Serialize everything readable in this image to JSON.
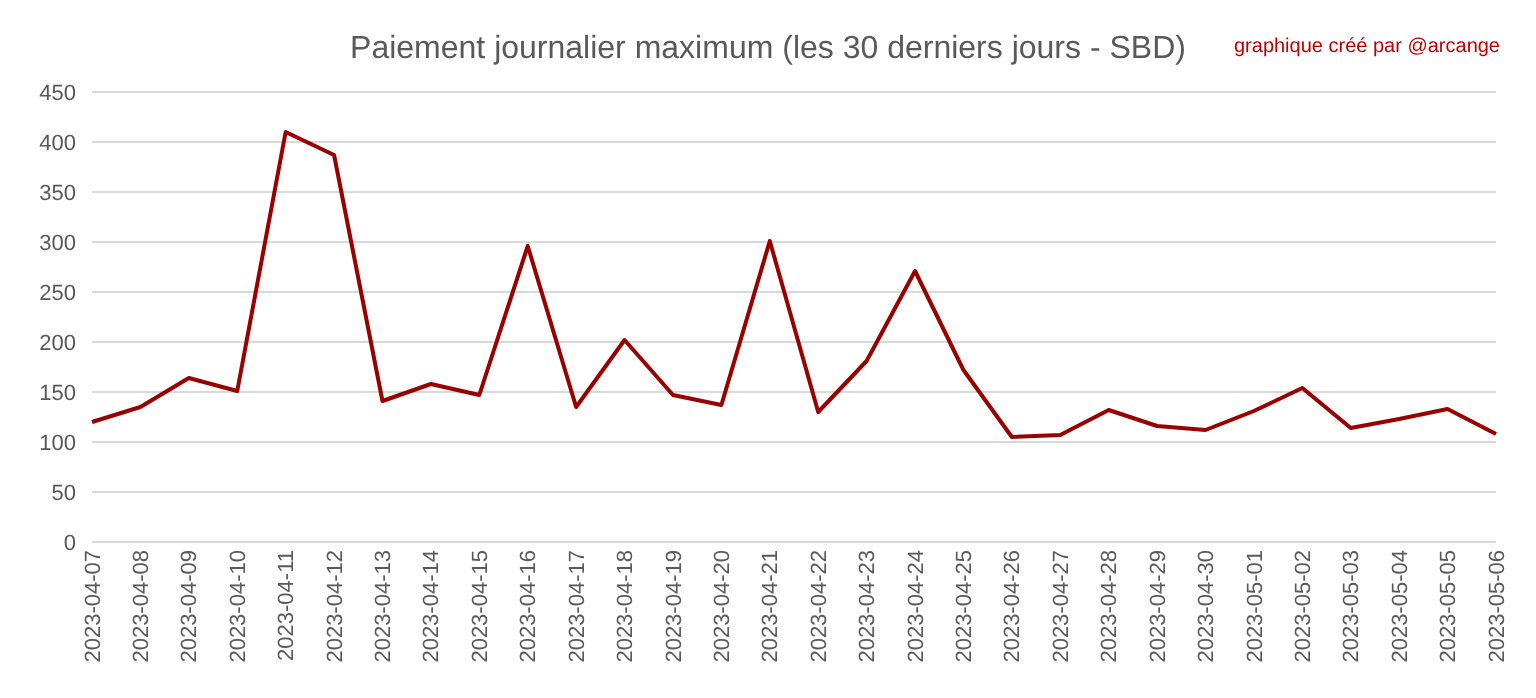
{
  "chart_data": {
    "type": "line",
    "title": "Paiement journalier maximum (les 30 derniers jours - SBD)",
    "annotations": [
      "graphique créé par @arcange"
    ],
    "categories": [
      "2023-04-07",
      "2023-04-08",
      "2023-04-09",
      "2023-04-10",
      "2023-04-11",
      "2023-04-12",
      "2023-04-13",
      "2023-04-14",
      "2023-04-15",
      "2023-04-16",
      "2023-04-17",
      "2023-04-18",
      "2023-04-19",
      "2023-04-20",
      "2023-04-21",
      "2023-04-22",
      "2023-04-23",
      "2023-04-24",
      "2023-04-25",
      "2023-04-26",
      "2023-04-27",
      "2023-04-28",
      "2023-04-29",
      "2023-04-30",
      "2023-05-01",
      "2023-05-02",
      "2023-05-03",
      "2023-05-04",
      "2023-05-05",
      "2023-05-06"
    ],
    "series": [
      {
        "color": "#990000",
        "values": [
          120,
          135,
          164,
          151,
          410,
          387,
          141,
          158,
          147,
          296,
          135,
          202,
          147,
          137,
          301,
          130,
          181,
          271,
          172,
          105,
          107,
          132,
          116,
          112,
          131,
          154,
          114,
          123,
          133,
          108
        ]
      }
    ],
    "ylim": [
      0,
      450
    ],
    "yticks": [
      0,
      50,
      100,
      150,
      200,
      250,
      300,
      350,
      400,
      450
    ],
    "grid": "y",
    "marker": "none",
    "line_style": "solid"
  }
}
